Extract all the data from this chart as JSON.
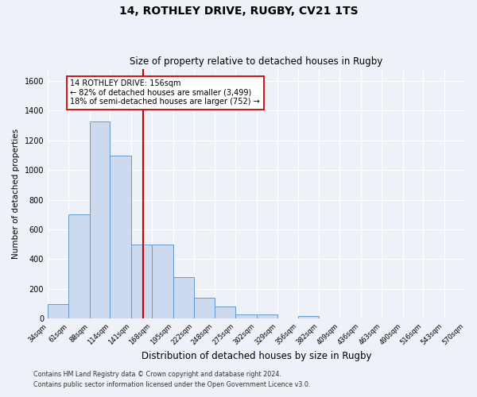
{
  "title": "14, ROTHLEY DRIVE, RUGBY, CV21 1TS",
  "subtitle": "Size of property relative to detached houses in Rugby",
  "xlabel": "Distribution of detached houses by size in Rugby",
  "ylabel": "Number of detached properties",
  "bin_edges": [
    34,
    61,
    88,
    114,
    141,
    168,
    195,
    222,
    248,
    275,
    302,
    329,
    356,
    382,
    409,
    436,
    463,
    490,
    516,
    543,
    570
  ],
  "counts": [
    100,
    700,
    1330,
    1100,
    500,
    500,
    280,
    140,
    80,
    30,
    30,
    0,
    15,
    0,
    0,
    0,
    0,
    0,
    0,
    0
  ],
  "bar_facecolor": "#ccd9ee",
  "bar_edgecolor": "#6699cc",
  "vline_x": 156,
  "vline_color": "#cc0000",
  "annotation_title": "14 ROTHLEY DRIVE: 156sqm",
  "annotation_line1": "← 82% of detached houses are smaller (3,499)",
  "annotation_line2": "18% of semi-detached houses are larger (752) →",
  "annotation_box_edgecolor": "#cc0000",
  "annotation_box_facecolor": "#ffffff",
  "ylim": [
    0,
    1680
  ],
  "yticks": [
    0,
    200,
    400,
    600,
    800,
    1000,
    1200,
    1400,
    1600
  ],
  "bg_color": "#eef1f8",
  "grid_color": "#d8dde8",
  "footer1": "Contains HM Land Registry data © Crown copyright and database right 2024.",
  "footer2": "Contains public sector information licensed under the Open Government Licence v3.0."
}
